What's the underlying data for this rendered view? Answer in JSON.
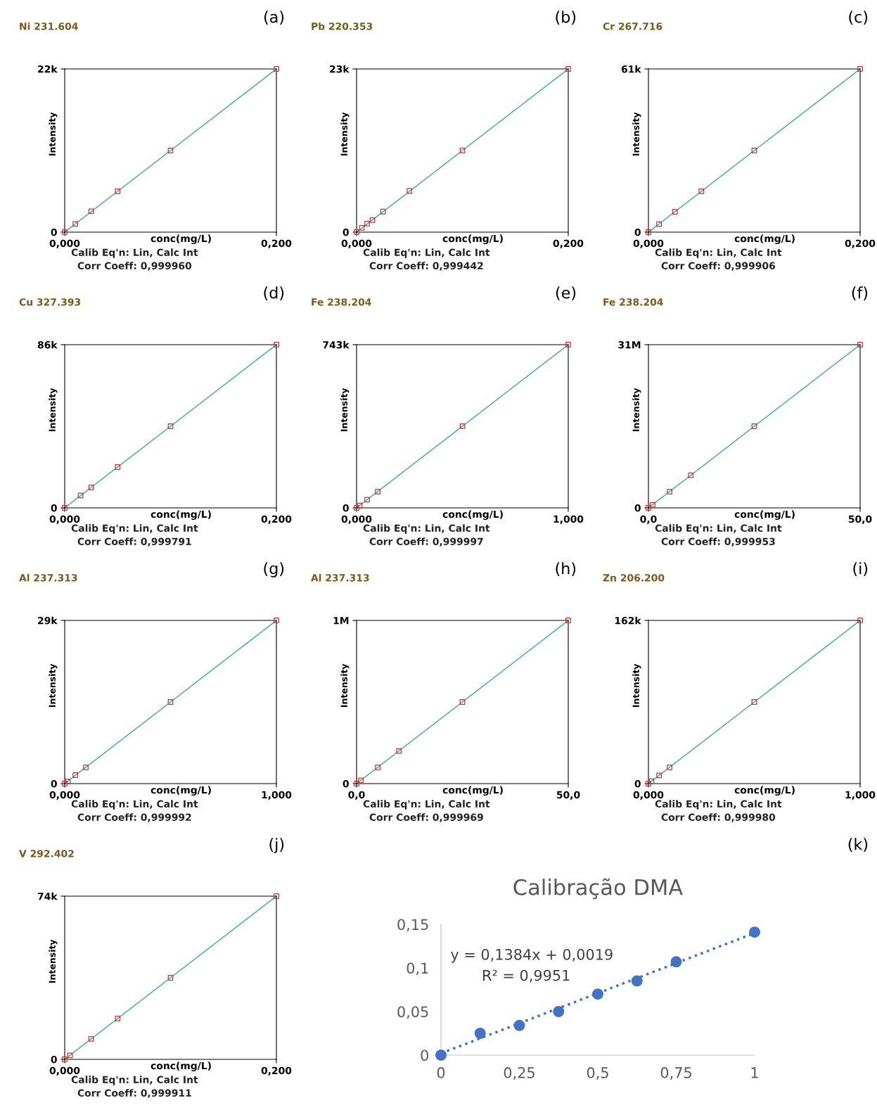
{
  "chart_data": [
    {
      "type": "scatter",
      "title": "Ni 231.604",
      "xlabel": "conc(mg/L)",
      "ylabel": "Intensity",
      "xlim": [
        0,
        0.2
      ],
      "ylim": [
        0,
        22000
      ],
      "xticks": [
        {
          "value": 0,
          "label": "0,000"
        },
        {
          "value": 0.2,
          "label": "0,200"
        }
      ],
      "yticks": [
        0,
        {
          "value": 22000,
          "label": "22k"
        }
      ],
      "annotations": [
        "Calib Eq'n: Lin, Calc Int",
        "Corr Coeff: 0,999960",
        "(a)"
      ],
      "series": [
        {
          "color": "#d0342c",
          "marker": "square",
          "x": [
            0,
            0.01,
            0.025,
            0.05,
            0.1,
            0.2
          ],
          "values": [
            0,
            1100,
            2800,
            5500,
            11000,
            22000
          ]
        },
        {
          "type": "line",
          "color": "#3fa9a3",
          "line_style": "solid",
          "x": [
            0,
            0.2
          ],
          "values": [
            0,
            22000
          ]
        }
      ]
    },
    {
      "type": "scatter",
      "title": "Pb 220.353",
      "xlabel": "conc(mg/L)",
      "ylabel": "Intensity",
      "xlim": [
        0,
        0.2
      ],
      "ylim": [
        0,
        23000
      ],
      "xticks": [
        {
          "value": 0,
          "label": "0,000"
        },
        {
          "value": 0.2,
          "label": "0,200"
        }
      ],
      "yticks": [
        0,
        {
          "value": 23000,
          "label": "23k"
        }
      ],
      "annotations": [
        "Calib Eq'n: Lin, Calc Int",
        "Corr Coeff: 0,999442",
        "(b)"
      ],
      "series": [
        {
          "color": "#d0342c",
          "marker": "square",
          "x": [
            0,
            0.005,
            0.01,
            0.015,
            0.025,
            0.05,
            0.1,
            0.2
          ],
          "values": [
            0,
            600,
            1200,
            1700,
            2900,
            5800,
            11500,
            23000
          ]
        },
        {
          "type": "line",
          "color": "#3fa9a3",
          "line_style": "solid",
          "x": [
            0,
            0.2
          ],
          "values": [
            0,
            23000
          ]
        }
      ]
    },
    {
      "type": "scatter",
      "title": "Cr 267.716",
      "xlabel": "conc(mg/L)",
      "ylabel": "Intensity",
      "xlim": [
        0,
        0.2
      ],
      "ylim": [
        0,
        61000
      ],
      "xticks": [
        {
          "value": 0,
          "label": "0,000"
        },
        {
          "value": 0.2,
          "label": "0,200"
        }
      ],
      "yticks": [
        0,
        {
          "value": 61000,
          "label": "61k"
        }
      ],
      "annotations": [
        "Calib Eq'n: Lin, Calc Int",
        "Corr Coeff: 0,999906",
        "(c)"
      ],
      "series": [
        {
          "color": "#d0342c",
          "marker": "square",
          "x": [
            0,
            0.01,
            0.025,
            0.05,
            0.1,
            0.2
          ],
          "values": [
            0,
            3000,
            7600,
            15300,
            30500,
            61000
          ]
        },
        {
          "type": "line",
          "color": "#3fa9a3",
          "line_style": "solid",
          "x": [
            0,
            0.2
          ],
          "values": [
            0,
            61000
          ]
        }
      ]
    },
    {
      "type": "scatter",
      "title": "Cu 327.393",
      "xlabel": "conc(mg/L)",
      "ylabel": "Intensity",
      "xlim": [
        0,
        0.2
      ],
      "ylim": [
        0,
        86000
      ],
      "xticks": [
        {
          "value": 0,
          "label": "0,000"
        },
        {
          "value": 0.2,
          "label": "0,200"
        }
      ],
      "yticks": [
        0,
        {
          "value": 86000,
          "label": "86k"
        }
      ],
      "annotations": [
        "Calib Eq'n: Lin, Calc Int",
        "Corr Coeff: 0,999791",
        "(d)"
      ],
      "series": [
        {
          "color": "#d0342c",
          "marker": "square",
          "x": [
            0,
            0.015,
            0.025,
            0.05,
            0.1,
            0.2
          ],
          "values": [
            0,
            6500,
            10800,
            21500,
            43000,
            86000
          ]
        },
        {
          "type": "line",
          "color": "#3fa9a3",
          "line_style": "solid",
          "x": [
            0,
            0.2
          ],
          "values": [
            0,
            86000
          ]
        }
      ]
    },
    {
      "type": "scatter",
      "title": "Fe 238.204",
      "xlabel": "conc(mg/L)",
      "ylabel": "Intensity",
      "xlim": [
        0,
        1
      ],
      "ylim": [
        0,
        743000
      ],
      "xticks": [
        {
          "value": 0,
          "label": "0,000"
        },
        {
          "value": 1,
          "label": "1,000"
        }
      ],
      "yticks": [
        0,
        {
          "value": 743000,
          "label": "743k"
        }
      ],
      "annotations": [
        "Calib Eq'n: Lin, Calc Int",
        "Corr Coeff: 0,999997",
        "(e)"
      ],
      "series": [
        {
          "color": "#d0342c",
          "marker": "square",
          "x": [
            0,
            0.015,
            0.05,
            0.1,
            0.5,
            1
          ],
          "values": [
            0,
            11000,
            37000,
            74000,
            372000,
            743000
          ]
        },
        {
          "type": "line",
          "color": "#3fa9a3",
          "line_style": "solid",
          "x": [
            0,
            1
          ],
          "values": [
            0,
            743000
          ]
        }
      ]
    },
    {
      "type": "scatter",
      "title": "Fe 238.204",
      "xlabel": "conc(mg/L)",
      "ylabel": "Intensity",
      "xlim": [
        0,
        50
      ],
      "ylim": [
        0,
        31000000
      ],
      "xticks": [
        {
          "value": 0,
          "label": "0,0"
        },
        {
          "value": 50,
          "label": "50,0"
        }
      ],
      "yticks": [
        0,
        {
          "value": 31000000,
          "label": "31M"
        }
      ],
      "annotations": [
        "Calib Eq'n: Lin, Calc Int",
        "Corr Coeff: 0,999953",
        "(f)"
      ],
      "series": [
        {
          "color": "#d0342c",
          "marker": "square",
          "x": [
            0,
            1,
            5,
            10,
            25,
            50
          ],
          "values": [
            0,
            600000,
            3100000,
            6200000,
            15500000,
            31000000
          ]
        },
        {
          "type": "line",
          "color": "#3fa9a3",
          "line_style": "solid",
          "x": [
            0,
            50
          ],
          "values": [
            0,
            31000000
          ]
        }
      ]
    },
    {
      "type": "scatter",
      "title": "Al 237.313",
      "xlabel": "conc(mg/L)",
      "ylabel": "Intensity",
      "xlim": [
        0,
        1
      ],
      "ylim": [
        0,
        29000
      ],
      "xticks": [
        {
          "value": 0,
          "label": "0,000"
        },
        {
          "value": 1,
          "label": "1,000"
        }
      ],
      "yticks": [
        0,
        {
          "value": 29000,
          "label": "29k"
        }
      ],
      "annotations": [
        "Calib Eq'n: Lin, Calc Int",
        "Corr Coeff: 0,999992",
        "(g)"
      ],
      "series": [
        {
          "color": "#d0342c",
          "marker": "square",
          "x": [
            0,
            0.015,
            0.05,
            0.1,
            0.5,
            1
          ],
          "values": [
            0,
            400,
            1500,
            2900,
            14500,
            29000
          ]
        },
        {
          "type": "line",
          "color": "#3fa9a3",
          "line_style": "solid",
          "x": [
            0,
            1
          ],
          "values": [
            0,
            29000
          ]
        }
      ]
    },
    {
      "type": "scatter",
      "title": "Al 237.313",
      "xlabel": "conc(mg/L)",
      "ylabel": "Intensity",
      "xlim": [
        0,
        50
      ],
      "ylim": [
        0,
        1000000
      ],
      "xticks": [
        {
          "value": 0,
          "label": "0,0"
        },
        {
          "value": 50,
          "label": "50,0"
        }
      ],
      "yticks": [
        0,
        {
          "value": 1000000,
          "label": "1M"
        }
      ],
      "annotations": [
        "Calib Eq'n: Lin, Calc Int",
        "Corr Coeff: 0,999969",
        "(h)"
      ],
      "series": [
        {
          "color": "#d0342c",
          "marker": "square",
          "x": [
            0,
            1,
            5,
            10,
            25,
            50
          ],
          "values": [
            0,
            20000,
            100000,
            200000,
            500000,
            1000000
          ]
        },
        {
          "type": "line",
          "color": "#3fa9a3",
          "line_style": "solid",
          "x": [
            0,
            50
          ],
          "values": [
            0,
            1000000
          ]
        }
      ]
    },
    {
      "type": "scatter",
      "title": "Zn 206.200",
      "xlabel": "conc(mg/L)",
      "ylabel": "Intensity",
      "xlim": [
        0,
        1
      ],
      "ylim": [
        0,
        162000
      ],
      "xticks": [
        {
          "value": 0,
          "label": "0,000"
        },
        {
          "value": 1,
          "label": "1,000"
        }
      ],
      "yticks": [
        0,
        {
          "value": 162000,
          "label": "162k"
        }
      ],
      "annotations": [
        "Calib Eq'n: Lin, Calc Int",
        "Corr Coeff: 0,999980",
        "(i)"
      ],
      "series": [
        {
          "color": "#d0342c",
          "marker": "square",
          "x": [
            0,
            0.015,
            0.05,
            0.1,
            0.5,
            1
          ],
          "values": [
            0,
            2400,
            8100,
            16200,
            81000,
            162000
          ]
        },
        {
          "type": "line",
          "color": "#3fa9a3",
          "line_style": "solid",
          "x": [
            0,
            1
          ],
          "values": [
            0,
            162000
          ]
        }
      ]
    },
    {
      "type": "scatter",
      "title": "V 292.402",
      "xlabel": "conc(mg/L)",
      "ylabel": "Intensity",
      "xlim": [
        0,
        0.2
      ],
      "ylim": [
        0,
        74000
      ],
      "xticks": [
        {
          "value": 0,
          "label": "0,000"
        },
        {
          "value": 0.2,
          "label": "0,200"
        }
      ],
      "yticks": [
        0,
        {
          "value": 74000,
          "label": "74k"
        }
      ],
      "annotations": [
        "Calib Eq'n: Lin, Calc Int",
        "Corr Coeff: 0,999911",
        "(j)"
      ],
      "series": [
        {
          "color": "#d0342c",
          "marker": "square",
          "x": [
            0,
            0.005,
            0.025,
            0.05,
            0.1,
            0.2
          ],
          "values": [
            0,
            1800,
            9300,
            18500,
            37000,
            74000
          ]
        },
        {
          "type": "line",
          "color": "#3fa9a3",
          "line_style": "solid",
          "x": [
            0,
            0.2
          ],
          "values": [
            0,
            74000
          ]
        }
      ]
    },
    {
      "type": "scatter",
      "title": "Calibração DMA",
      "xlim": [
        0,
        1
      ],
      "ylim": [
        0,
        0.15
      ],
      "xticks": [
        0,
        {
          "value": 0.25,
          "label": "0,25"
        },
        {
          "value": 0.5,
          "label": "0,5"
        },
        {
          "value": 0.75,
          "label": "0,75"
        },
        1
      ],
      "yticks": [
        0,
        {
          "value": 0.05,
          "label": "0,05"
        },
        {
          "value": 0.1,
          "label": "0,1"
        },
        {
          "value": 0.15,
          "label": "0,15"
        }
      ],
      "annotations": [
        "y = 0,1384x + 0,0019",
        "R² = 0,9951",
        "(k)"
      ],
      "series": [
        {
          "color": "#4472c4",
          "marker": "circle",
          "x": [
            0,
            0.125,
            0.25,
            0.375,
            0.5,
            0.625,
            0.75,
            1
          ],
          "values": [
            0,
            0.025,
            0.034,
            0.05,
            0.07,
            0.085,
            0.107,
            0.141
          ]
        },
        {
          "type": "line",
          "color": "#4472c4",
          "line_style": "dotted",
          "x": [
            0,
            1
          ],
          "values": [
            0.002,
            0.14
          ]
        }
      ]
    }
  ]
}
